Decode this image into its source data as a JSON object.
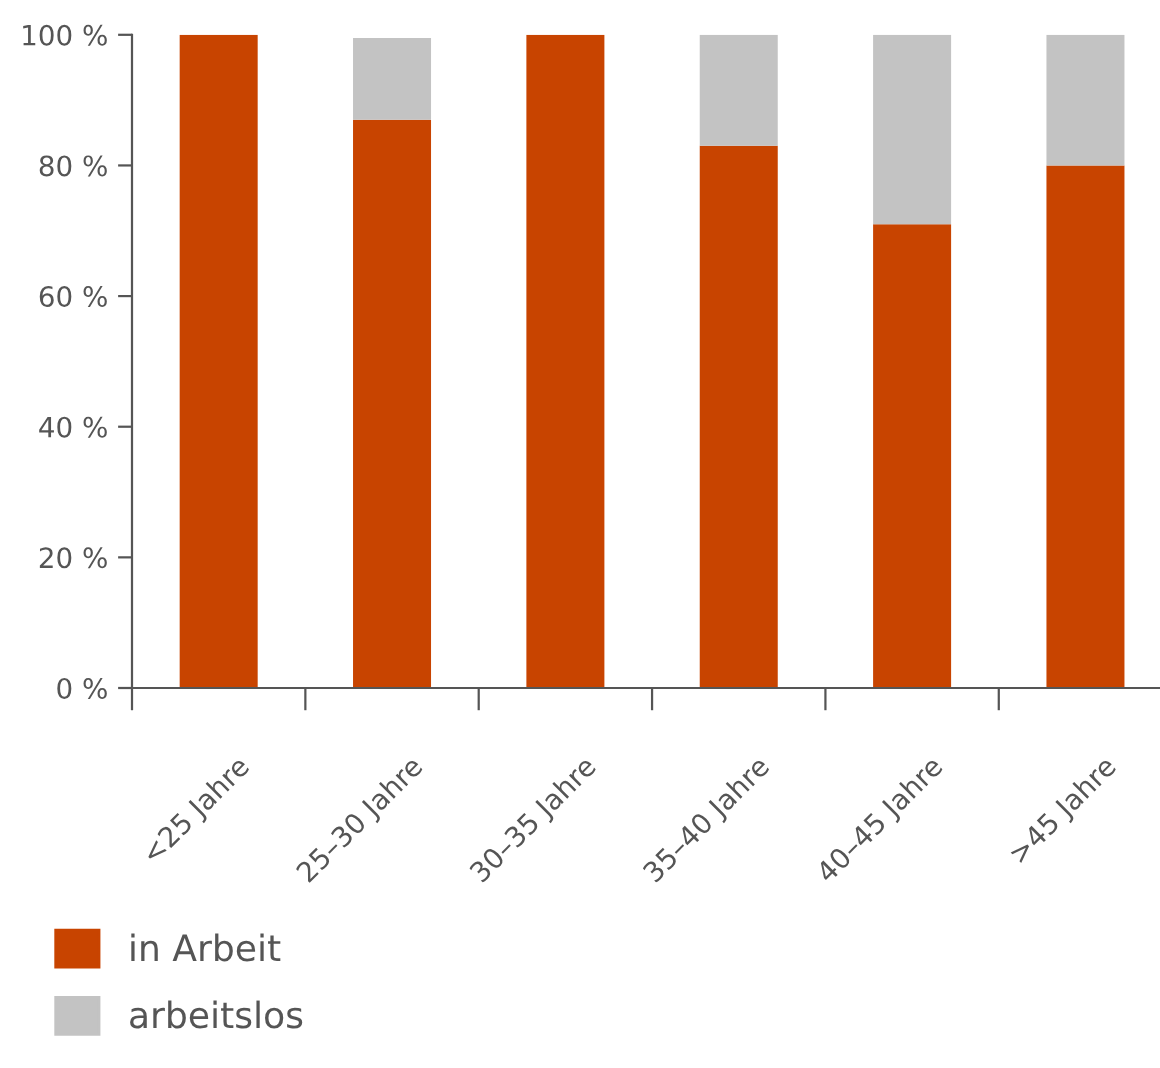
{
  "chart_data": {
    "type": "bar",
    "stacked": true,
    "categories": [
      "<25 Jahre",
      "25–30 Jahre",
      "30–35 Jahre",
      "35–40 Jahre",
      "40–45 Jahre",
      ">45 Jahre"
    ],
    "series": [
      {
        "name": "in Arbeit",
        "color": "#c84400",
        "values": [
          100,
          87,
          100,
          83,
          71,
          80
        ]
      },
      {
        "name": "arbeitslos",
        "color": "#c3c3c3",
        "values": [
          0,
          12.5,
          0,
          17,
          29,
          20
        ]
      }
    ],
    "ylim": [
      0,
      100
    ],
    "yticks": [
      {
        "value": 0,
        "label": "0 %"
      },
      {
        "value": 20,
        "label": "20 %"
      },
      {
        "value": 40,
        "label": "40 %"
      },
      {
        "value": 60,
        "label": "60 %"
      },
      {
        "value": 80,
        "label": "80 %"
      },
      {
        "value": 100,
        "label": "100 %"
      }
    ],
    "grid": false,
    "legend": "bottom left"
  }
}
